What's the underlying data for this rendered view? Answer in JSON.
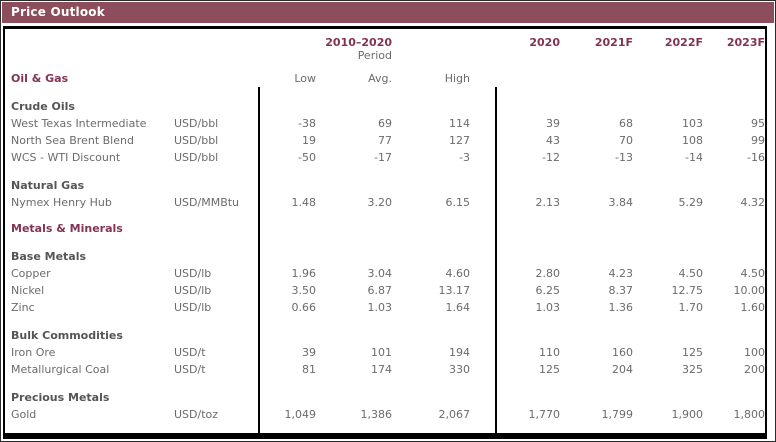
{
  "title_bar": {
    "title": "Price Outlook"
  },
  "colors": {
    "title_bar_bg": "#8C4D5C",
    "title_text": "#FFFFFF",
    "accent_maroon": "#823355",
    "body_text_gray": "#6B6B6B",
    "section_text_gray": "#555555",
    "line_black": "#000000"
  },
  "header": {
    "period_title": "2010–2020",
    "period_subtitle": "Period",
    "group_left_label": "Oil & Gas",
    "range_columns": [
      "Low",
      "Avg.",
      "High"
    ],
    "year_columns": [
      "2020",
      "2021F",
      "2022F",
      "2023F"
    ]
  },
  "table": {
    "rows": [
      {
        "type": "section",
        "label": "Crude Oils"
      },
      {
        "type": "data",
        "name": "West Texas Intermediate",
        "unit": "USD/bbl",
        "values": [
          "-38",
          "69",
          "114",
          "39",
          "68",
          "103",
          "95"
        ]
      },
      {
        "type": "data",
        "name": "North Sea Brent Blend",
        "unit": "USD/bbl",
        "values": [
          "19",
          "77",
          "127",
          "43",
          "70",
          "108",
          "99"
        ]
      },
      {
        "type": "data",
        "name": "WCS - WTI Discount",
        "unit": "USD/bbl",
        "values": [
          "-50",
          "-17",
          "-3",
          "-12",
          "-13",
          "-14",
          "-16"
        ]
      },
      {
        "type": "section",
        "label": "Natural Gas"
      },
      {
        "type": "data",
        "name": "Nymex Henry Hub",
        "unit": "USD/MMBtu",
        "values": [
          "1.48",
          "3.20",
          "6.15",
          "2.13",
          "3.84",
          "5.29",
          "4.32"
        ]
      },
      {
        "type": "category",
        "label": "Metals & Minerals"
      },
      {
        "type": "section",
        "label": "Base Metals"
      },
      {
        "type": "data",
        "name": "Copper",
        "unit": "USD/lb",
        "values": [
          "1.96",
          "3.04",
          "4.60",
          "2.80",
          "4.23",
          "4.50",
          "4.50"
        ]
      },
      {
        "type": "data",
        "name": "Nickel",
        "unit": "USD/lb",
        "values": [
          "3.50",
          "6.87",
          "13.17",
          "6.25",
          "8.37",
          "12.75",
          "10.00"
        ]
      },
      {
        "type": "data",
        "name": "Zinc",
        "unit": "USD/lb",
        "values": [
          "0.66",
          "1.03",
          "1.64",
          "1.03",
          "1.36",
          "1.70",
          "1.60"
        ]
      },
      {
        "type": "section",
        "label": "Bulk Commodities"
      },
      {
        "type": "data",
        "name": "Iron Ore",
        "unit": "USD/t",
        "values": [
          "39",
          "101",
          "194",
          "110",
          "160",
          "125",
          "100"
        ]
      },
      {
        "type": "data",
        "name": "Metallurgical Coal",
        "unit": "USD/t",
        "values": [
          "81",
          "174",
          "330",
          "125",
          "204",
          "325",
          "200"
        ]
      },
      {
        "type": "section",
        "label": "Precious Metals"
      },
      {
        "type": "data",
        "name": "Gold",
        "unit": "USD/toz",
        "values": [
          "1,049",
          "1,386",
          "2,067",
          "1,770",
          "1,799",
          "1,900",
          "1,800"
        ]
      }
    ]
  }
}
